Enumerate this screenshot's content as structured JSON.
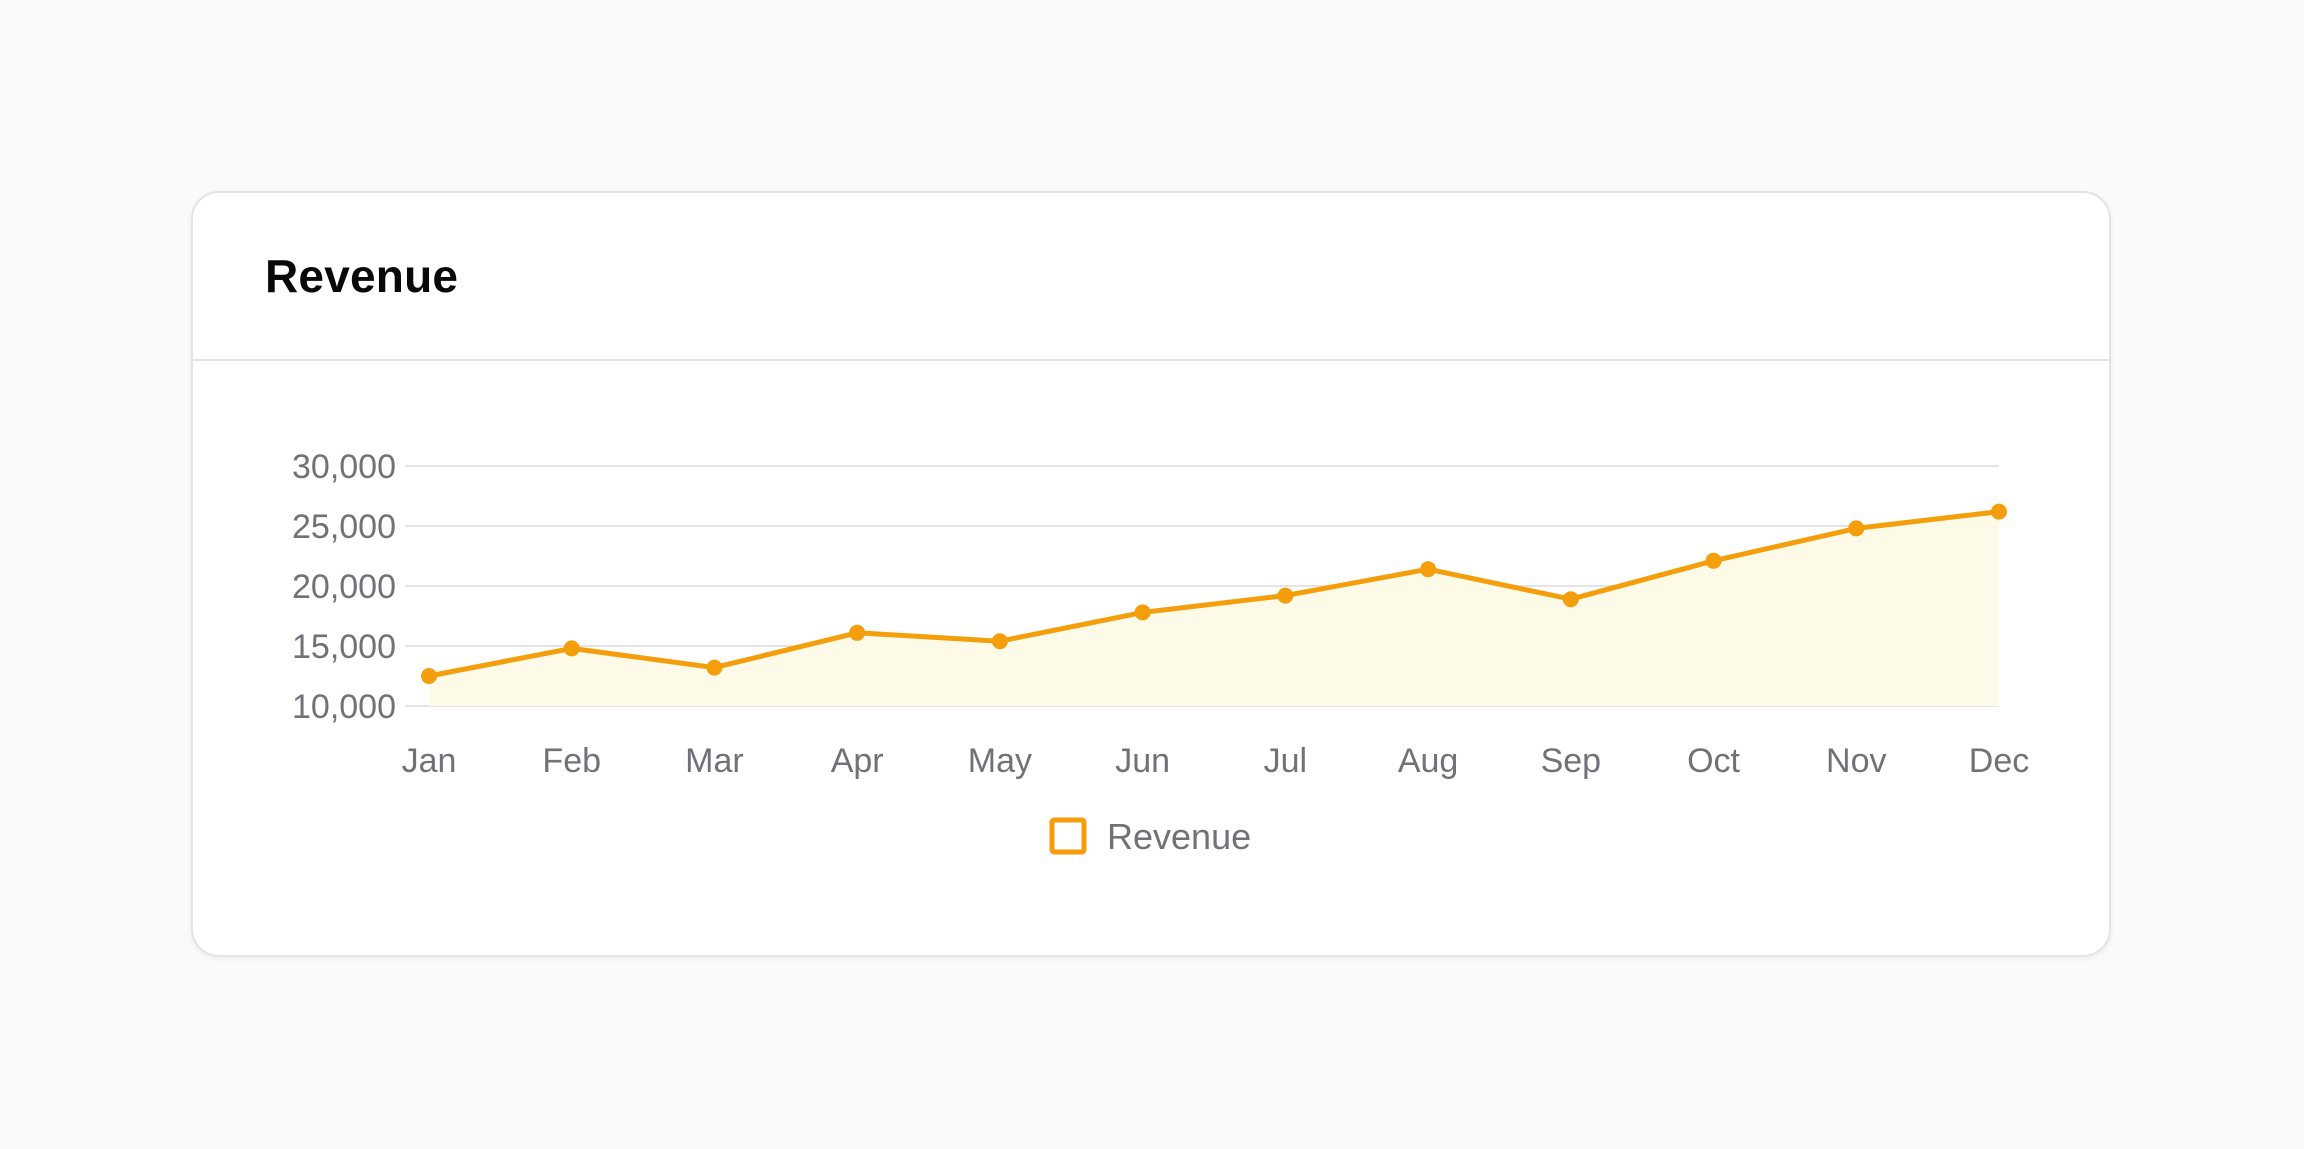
{
  "card": {
    "title": "Revenue"
  },
  "colors": {
    "line": "#f59e0b",
    "fill": "#fefae8",
    "grid": "#e4e4e7",
    "tick": "#71717a",
    "title": "#09090b"
  },
  "chart_data": {
    "type": "area",
    "title": "Revenue",
    "xlabel": "",
    "ylabel": "",
    "categories": [
      "Jan",
      "Feb",
      "Mar",
      "Apr",
      "May",
      "Jun",
      "Jul",
      "Aug",
      "Sep",
      "Oct",
      "Nov",
      "Dec"
    ],
    "series": [
      {
        "name": "Revenue",
        "values": [
          12500,
          14800,
          13200,
          16100,
          15400,
          17800,
          19200,
          21400,
          18900,
          22100,
          24800,
          26200
        ]
      }
    ],
    "ylim": [
      10000,
      30000
    ],
    "yticks": [
      30000,
      25000,
      20000,
      15000,
      10000
    ],
    "ytick_labels": [
      "30,000",
      "25,000",
      "20,000",
      "15,000",
      "10,000"
    ],
    "grid": true,
    "legend": "bottom-center",
    "markers": true
  }
}
